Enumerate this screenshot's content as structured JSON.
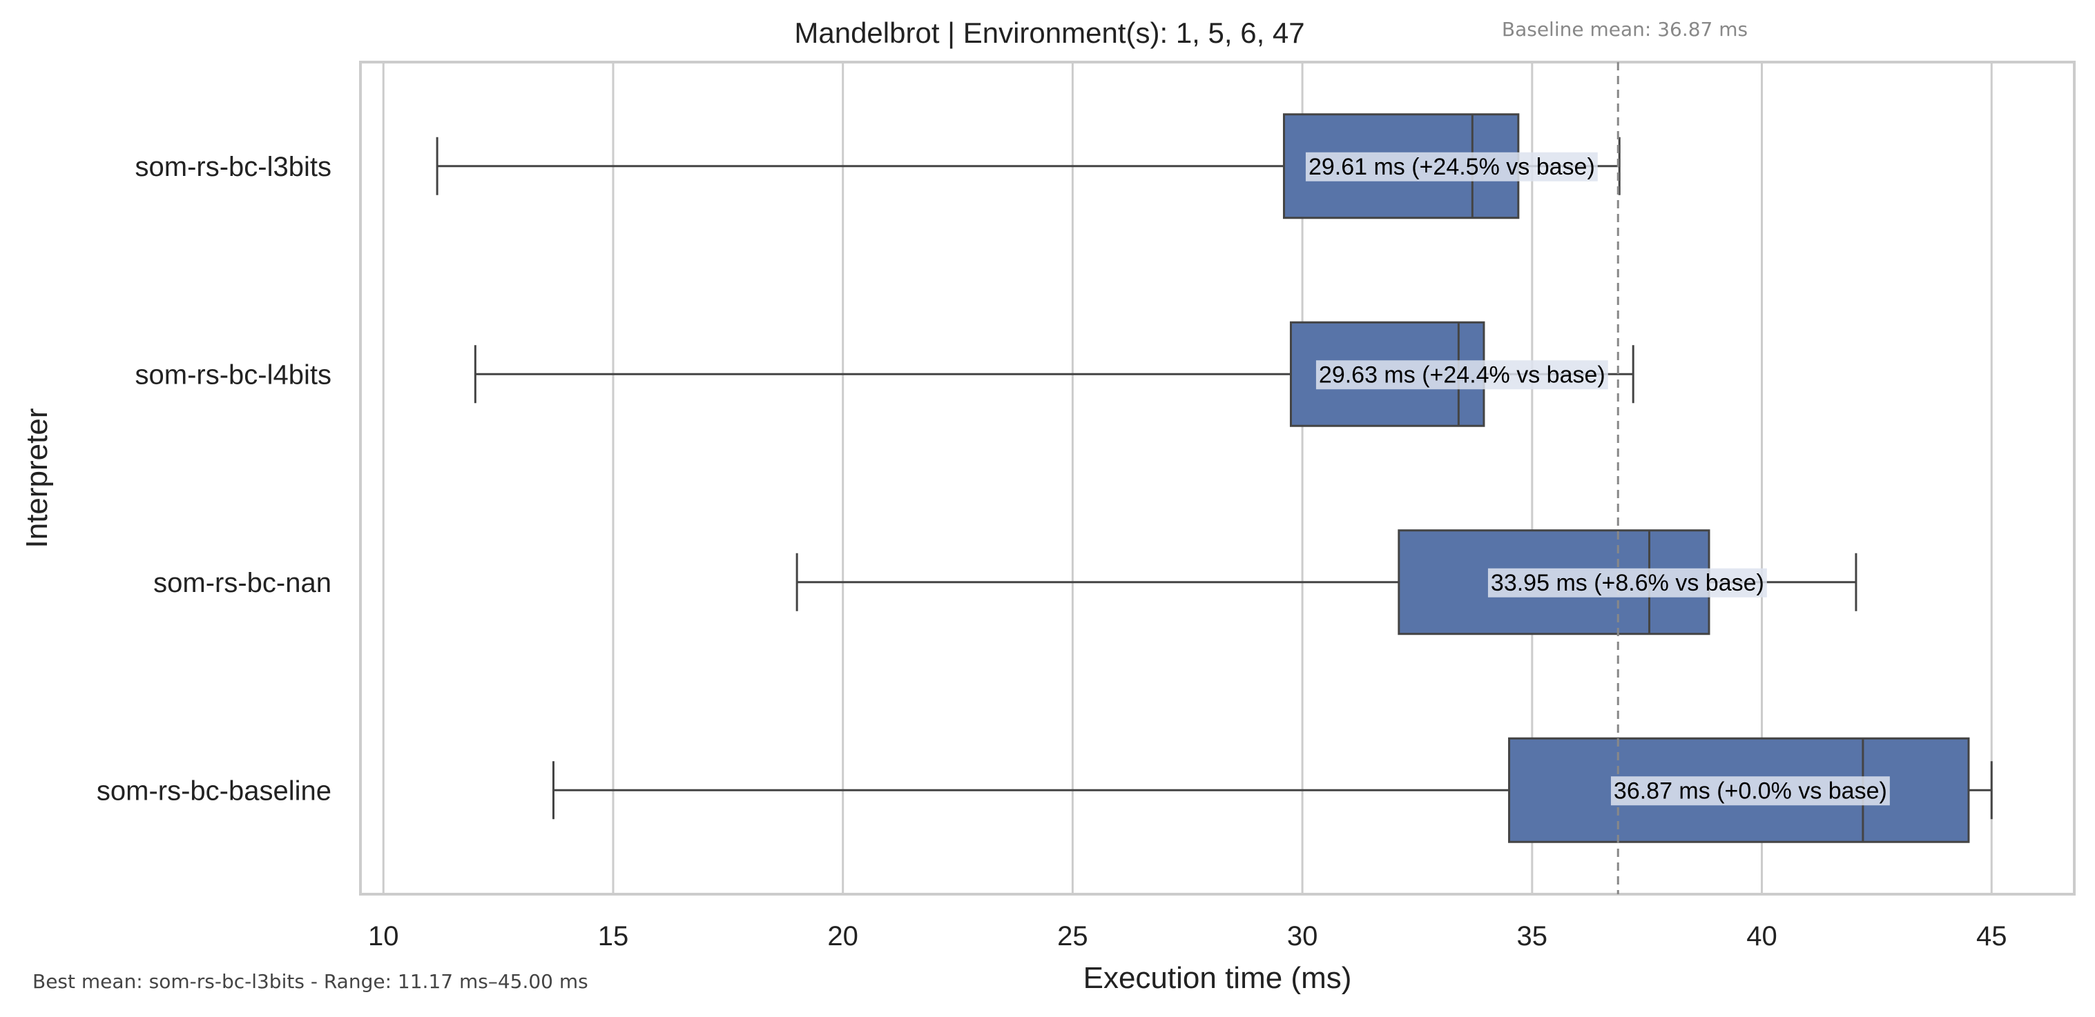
{
  "footer": {
    "note": "Best mean: som-rs-bc-l3bits - Range: 11.17 ms–45.00 ms"
  },
  "chart_data": {
    "type": "box",
    "orientation": "horizontal",
    "title": "Mandelbrot | Environment(s): 1, 5, 6, 47",
    "xlabel": "Execution time (ms)",
    "ylabel": "Interpreter",
    "xlim": [
      9.5,
      46.8
    ],
    "xticks": [
      10,
      15,
      20,
      25,
      30,
      35,
      40,
      45
    ],
    "grid": "vertical",
    "box_color": "#5874a8",
    "edge_color": "#444444",
    "baseline": {
      "value": 36.87,
      "label": "Baseline mean: 36.87 ms",
      "color": "#888888"
    },
    "categories": [
      "som-rs-bc-l3bits",
      "som-rs-bc-l4bits",
      "som-rs-bc-nan",
      "som-rs-bc-baseline"
    ],
    "boxes": [
      {
        "name": "som-rs-bc-l3bits",
        "whisker_low": 11.17,
        "q1": 29.6,
        "median": 33.7,
        "q3": 34.7,
        "whisker_high": 36.9,
        "annotation": "29.61 ms  (+24.5% vs base)"
      },
      {
        "name": "som-rs-bc-l4bits",
        "whisker_low": 12.0,
        "q1": 29.75,
        "median": 33.4,
        "q3": 33.95,
        "whisker_high": 37.2,
        "annotation": "29.63 ms  (+24.4% vs base)"
      },
      {
        "name": "som-rs-bc-nan",
        "whisker_low": 19.0,
        "q1": 32.1,
        "median": 37.55,
        "q3": 38.85,
        "whisker_high": 42.05,
        "annotation": "33.95 ms  (+8.6% vs base)"
      },
      {
        "name": "som-rs-bc-baseline",
        "whisker_low": 13.7,
        "q1": 34.5,
        "median": 42.2,
        "q3": 44.5,
        "whisker_high": 45.0,
        "annotation": "36.87 ms  (+0.0% vs base)"
      }
    ]
  }
}
